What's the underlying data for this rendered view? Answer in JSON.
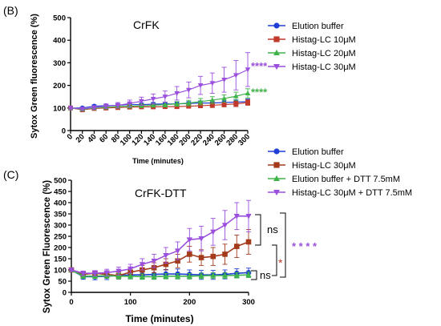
{
  "chart_data": [
    {
      "type": "line",
      "panel_label": "(B)",
      "title": "CrFK",
      "xlabel": "Time (minutes)",
      "ylabel": "Sytox Green fluorescence (%)",
      "xlim": [
        0,
        300
      ],
      "ylim": [
        0,
        500
      ],
      "x_ticks": [
        0,
        20,
        40,
        60,
        80,
        100,
        120,
        140,
        160,
        180,
        200,
        220,
        240,
        260,
        280,
        300
      ],
      "y_ticks": [
        0,
        100,
        200,
        300,
        400,
        500
      ],
      "x_tick_labels": [
        "0",
        "20",
        "40",
        "60",
        "80",
        "100",
        "120",
        "140",
        "160",
        "180",
        "200",
        "220",
        "240",
        "260",
        "280",
        "300"
      ],
      "y_tick_labels": [
        "0",
        "100",
        "200",
        "300",
        "400",
        "500"
      ],
      "legend_position": "right",
      "series": [
        {
          "name": "Elution buffer",
          "color": "#1f3fd6",
          "marker": "circle",
          "x": [
            0,
            20,
            40,
            60,
            80,
            100,
            120,
            140,
            160,
            180,
            200,
            220,
            240,
            260,
            280,
            300
          ],
          "y": [
            100,
            100,
            108,
            110,
            112,
            115,
            115,
            117,
            118,
            118,
            120,
            122,
            122,
            124,
            126,
            128
          ],
          "err": [
            4,
            4,
            6,
            6,
            6,
            7,
            7,
            7,
            8,
            8,
            8,
            9,
            9,
            10,
            10,
            12
          ]
        },
        {
          "name": "Histag-LC 10μM",
          "color": "#c0392b",
          "marker": "square",
          "x": [
            0,
            20,
            40,
            60,
            80,
            100,
            120,
            140,
            160,
            180,
            200,
            220,
            240,
            260,
            280,
            300
          ],
          "y": [
            100,
            92,
            98,
            100,
            102,
            104,
            105,
            105,
            106,
            106,
            108,
            110,
            112,
            115,
            118,
            124
          ],
          "err": [
            4,
            4,
            5,
            5,
            6,
            6,
            7,
            7,
            7,
            8,
            8,
            9,
            10,
            10,
            12,
            12
          ]
        },
        {
          "name": "Histag-LC 20μM",
          "color": "#3fb44a",
          "marker": "triangle-up",
          "x": [
            0,
            20,
            40,
            60,
            80,
            100,
            120,
            140,
            160,
            180,
            200,
            220,
            240,
            260,
            280,
            300
          ],
          "y": [
            100,
            94,
            100,
            103,
            106,
            108,
            110,
            112,
            115,
            118,
            122,
            128,
            135,
            142,
            152,
            165
          ],
          "err": [
            4,
            5,
            5,
            6,
            6,
            7,
            8,
            8,
            10,
            10,
            12,
            14,
            15,
            16,
            18,
            20
          ]
        },
        {
          "name": "Histag-LC 30μM",
          "color": "#9b4fdd",
          "marker": "triangle-down",
          "x": [
            0,
            20,
            40,
            60,
            80,
            100,
            120,
            140,
            160,
            180,
            200,
            220,
            240,
            260,
            280,
            300
          ],
          "y": [
            100,
            96,
            102,
            108,
            112,
            120,
            130,
            140,
            150,
            165,
            180,
            200,
            210,
            225,
            245,
            270
          ],
          "err": [
            5,
            6,
            8,
            10,
            12,
            15,
            18,
            22,
            25,
            30,
            35,
            40,
            45,
            55,
            65,
            75
          ]
        }
      ],
      "annotations": [
        {
          "text": "****",
          "color": "#9b4fdd",
          "x": 300,
          "y": 290
        },
        {
          "text": "****",
          "color": "#3fb44a",
          "x": 300,
          "y": 175
        }
      ]
    },
    {
      "type": "line",
      "panel_label": "(C)",
      "title": "CrFK-DTT",
      "xlabel": "Time (minutes)",
      "ylabel": "Sytox Green  Fluorescence (%)",
      "xlim": [
        0,
        300
      ],
      "ylim": [
        0,
        500
      ],
      "x_ticks": [
        0,
        100,
        200,
        300
      ],
      "y_ticks": [
        0,
        50,
        100,
        150,
        200,
        250,
        300,
        350,
        400,
        450,
        500
      ],
      "x_tick_labels": [
        "0",
        "100",
        "200",
        "300"
      ],
      "y_tick_labels": [
        "0",
        "50",
        "100",
        "150",
        "200",
        "250",
        "300",
        "350",
        "400",
        "450",
        "500"
      ],
      "legend_position": "top-right",
      "series": [
        {
          "name": "Elution buffer",
          "color": "#1f3fd6",
          "marker": "circle",
          "x": [
            0,
            20,
            40,
            60,
            80,
            100,
            120,
            140,
            160,
            180,
            200,
            220,
            240,
            260,
            280,
            300
          ],
          "y": [
            100,
            70,
            70,
            72,
            75,
            78,
            78,
            80,
            82,
            82,
            80,
            78,
            78,
            80,
            85,
            88
          ],
          "err": [
            5,
            12,
            14,
            15,
            16,
            18,
            18,
            20,
            20,
            22,
            20,
            20,
            20,
            20,
            20,
            20
          ]
        },
        {
          "name": "Histag-LC 30μM",
          "color": "#a33a1a",
          "marker": "square",
          "x": [
            0,
            20,
            40,
            60,
            80,
            100,
            120,
            140,
            160,
            180,
            200,
            220,
            240,
            260,
            280,
            300
          ],
          "y": [
            100,
            80,
            85,
            80,
            75,
            90,
            100,
            110,
            125,
            140,
            170,
            155,
            160,
            170,
            205,
            225
          ],
          "err": [
            5,
            10,
            10,
            15,
            15,
            20,
            20,
            22,
            25,
            30,
            35,
            35,
            40,
            45,
            50,
            55
          ]
        },
        {
          "name": "Elution buffer + DTT 7.5mM",
          "color": "#3fb44a",
          "marker": "triangle-up",
          "x": [
            0,
            20,
            40,
            60,
            80,
            100,
            120,
            140,
            160,
            180,
            200,
            220,
            240,
            260,
            280,
            300
          ],
          "y": [
            100,
            72,
            72,
            75,
            72,
            72,
            70,
            70,
            72,
            72,
            72,
            74,
            75,
            75,
            76,
            78
          ],
          "err": [
            5,
            10,
            10,
            12,
            12,
            12,
            12,
            12,
            12,
            12,
            12,
            12,
            12,
            12,
            12,
            12
          ]
        },
        {
          "name": "Histag-LC 30μM + DTT 7.5mM",
          "color": "#9b4fdd",
          "marker": "triangle-down",
          "x": [
            0,
            20,
            40,
            60,
            80,
            100,
            120,
            140,
            160,
            180,
            200,
            220,
            240,
            260,
            280,
            300
          ],
          "y": [
            100,
            85,
            85,
            88,
            95,
            105,
            125,
            140,
            165,
            185,
            235,
            240,
            270,
            300,
            340,
            340
          ],
          "err": [
            5,
            10,
            12,
            15,
            18,
            20,
            25,
            30,
            35,
            40,
            50,
            55,
            60,
            65,
            60,
            70
          ]
        }
      ],
      "annotations": [
        {
          "text": "ns",
          "color": "#000000",
          "target": "between Histag-LC 30μM and Histag-LC 30μM + DTT"
        },
        {
          "text": "ns",
          "color": "#000000",
          "target": "between Elution buffer groups"
        },
        {
          "text": "*",
          "color": "#c0392b",
          "target": "between Histag-LC 30μM and buffers"
        },
        {
          "text": "* * * *",
          "color": "#9b4fdd",
          "target": "overall"
        }
      ]
    }
  ]
}
